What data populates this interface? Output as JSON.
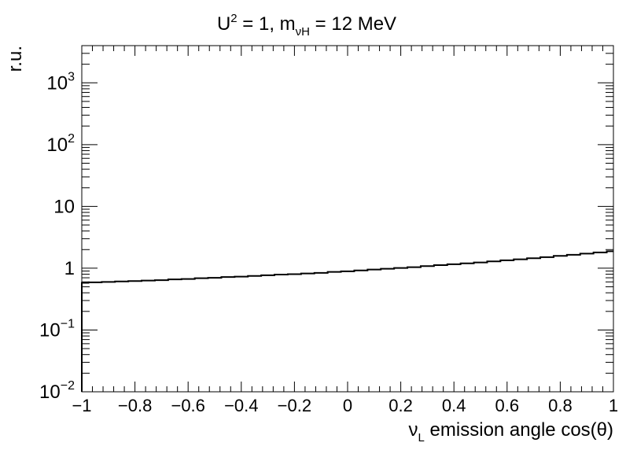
{
  "chart_data": {
    "type": "line",
    "title": {
      "base": "U",
      "sup": "2",
      "mid": " = 1, m",
      "sub": "νH",
      "tail": " = 12 MeV"
    },
    "xlabel": {
      "base": "ν",
      "sub": "L",
      "tail": " emission angle cos(θ)"
    },
    "ylabel": "r.u.",
    "xlim": [
      -1,
      1
    ],
    "ylim": [
      0.01,
      4000
    ],
    "yscale": "log",
    "grid": false,
    "x_ticks": [
      {
        "value": -1,
        "label": "−1"
      },
      {
        "value": -0.8,
        "label": "−0.8"
      },
      {
        "value": -0.6,
        "label": "−0.6"
      },
      {
        "value": -0.4,
        "label": "−0.4"
      },
      {
        "value": -0.2,
        "label": "−0.2"
      },
      {
        "value": 0,
        "label": "0"
      },
      {
        "value": 0.2,
        "label": "0.2"
      },
      {
        "value": 0.4,
        "label": "0.4"
      },
      {
        "value": 0.6,
        "label": "0.6"
      },
      {
        "value": 0.8,
        "label": "0.8"
      },
      {
        "value": 1,
        "label": "1"
      }
    ],
    "y_ticks": [
      {
        "value": 0.01,
        "base": "10",
        "sup": "−2"
      },
      {
        "value": 0.1,
        "base": "10",
        "sup": "−1"
      },
      {
        "value": 1,
        "base": "1",
        "sup": ""
      },
      {
        "value": 10,
        "base": "10",
        "sup": ""
      },
      {
        "value": 100,
        "base": "10",
        "sup": "2"
      },
      {
        "value": 1000,
        "base": "10",
        "sup": "3"
      }
    ],
    "series": [
      {
        "color": "#000000",
        "x": [
          -1.0,
          -0.95,
          -0.9,
          -0.85,
          -0.8,
          -0.75,
          -0.7,
          -0.65,
          -0.6,
          -0.55,
          -0.5,
          -0.45,
          -0.4,
          -0.35,
          -0.3,
          -0.25,
          -0.2,
          -0.15,
          -0.1,
          -0.05,
          0.0,
          0.05,
          0.1,
          0.15,
          0.2,
          0.25,
          0.3,
          0.35,
          0.4,
          0.45,
          0.5,
          0.55,
          0.6,
          0.65,
          0.7,
          0.75,
          0.8,
          0.85,
          0.9,
          0.95,
          1.0
        ],
        "values": [
          0.58,
          0.59,
          0.6,
          0.61,
          0.62,
          0.63,
          0.64,
          0.66,
          0.67,
          0.69,
          0.7,
          0.72,
          0.73,
          0.75,
          0.77,
          0.79,
          0.8,
          0.82,
          0.84,
          0.87,
          0.89,
          0.92,
          0.95,
          0.98,
          1.01,
          1.04,
          1.08,
          1.12,
          1.16,
          1.2,
          1.24,
          1.29,
          1.34,
          1.39,
          1.45,
          1.51,
          1.58,
          1.65,
          1.72,
          1.8,
          1.88
        ]
      }
    ]
  }
}
